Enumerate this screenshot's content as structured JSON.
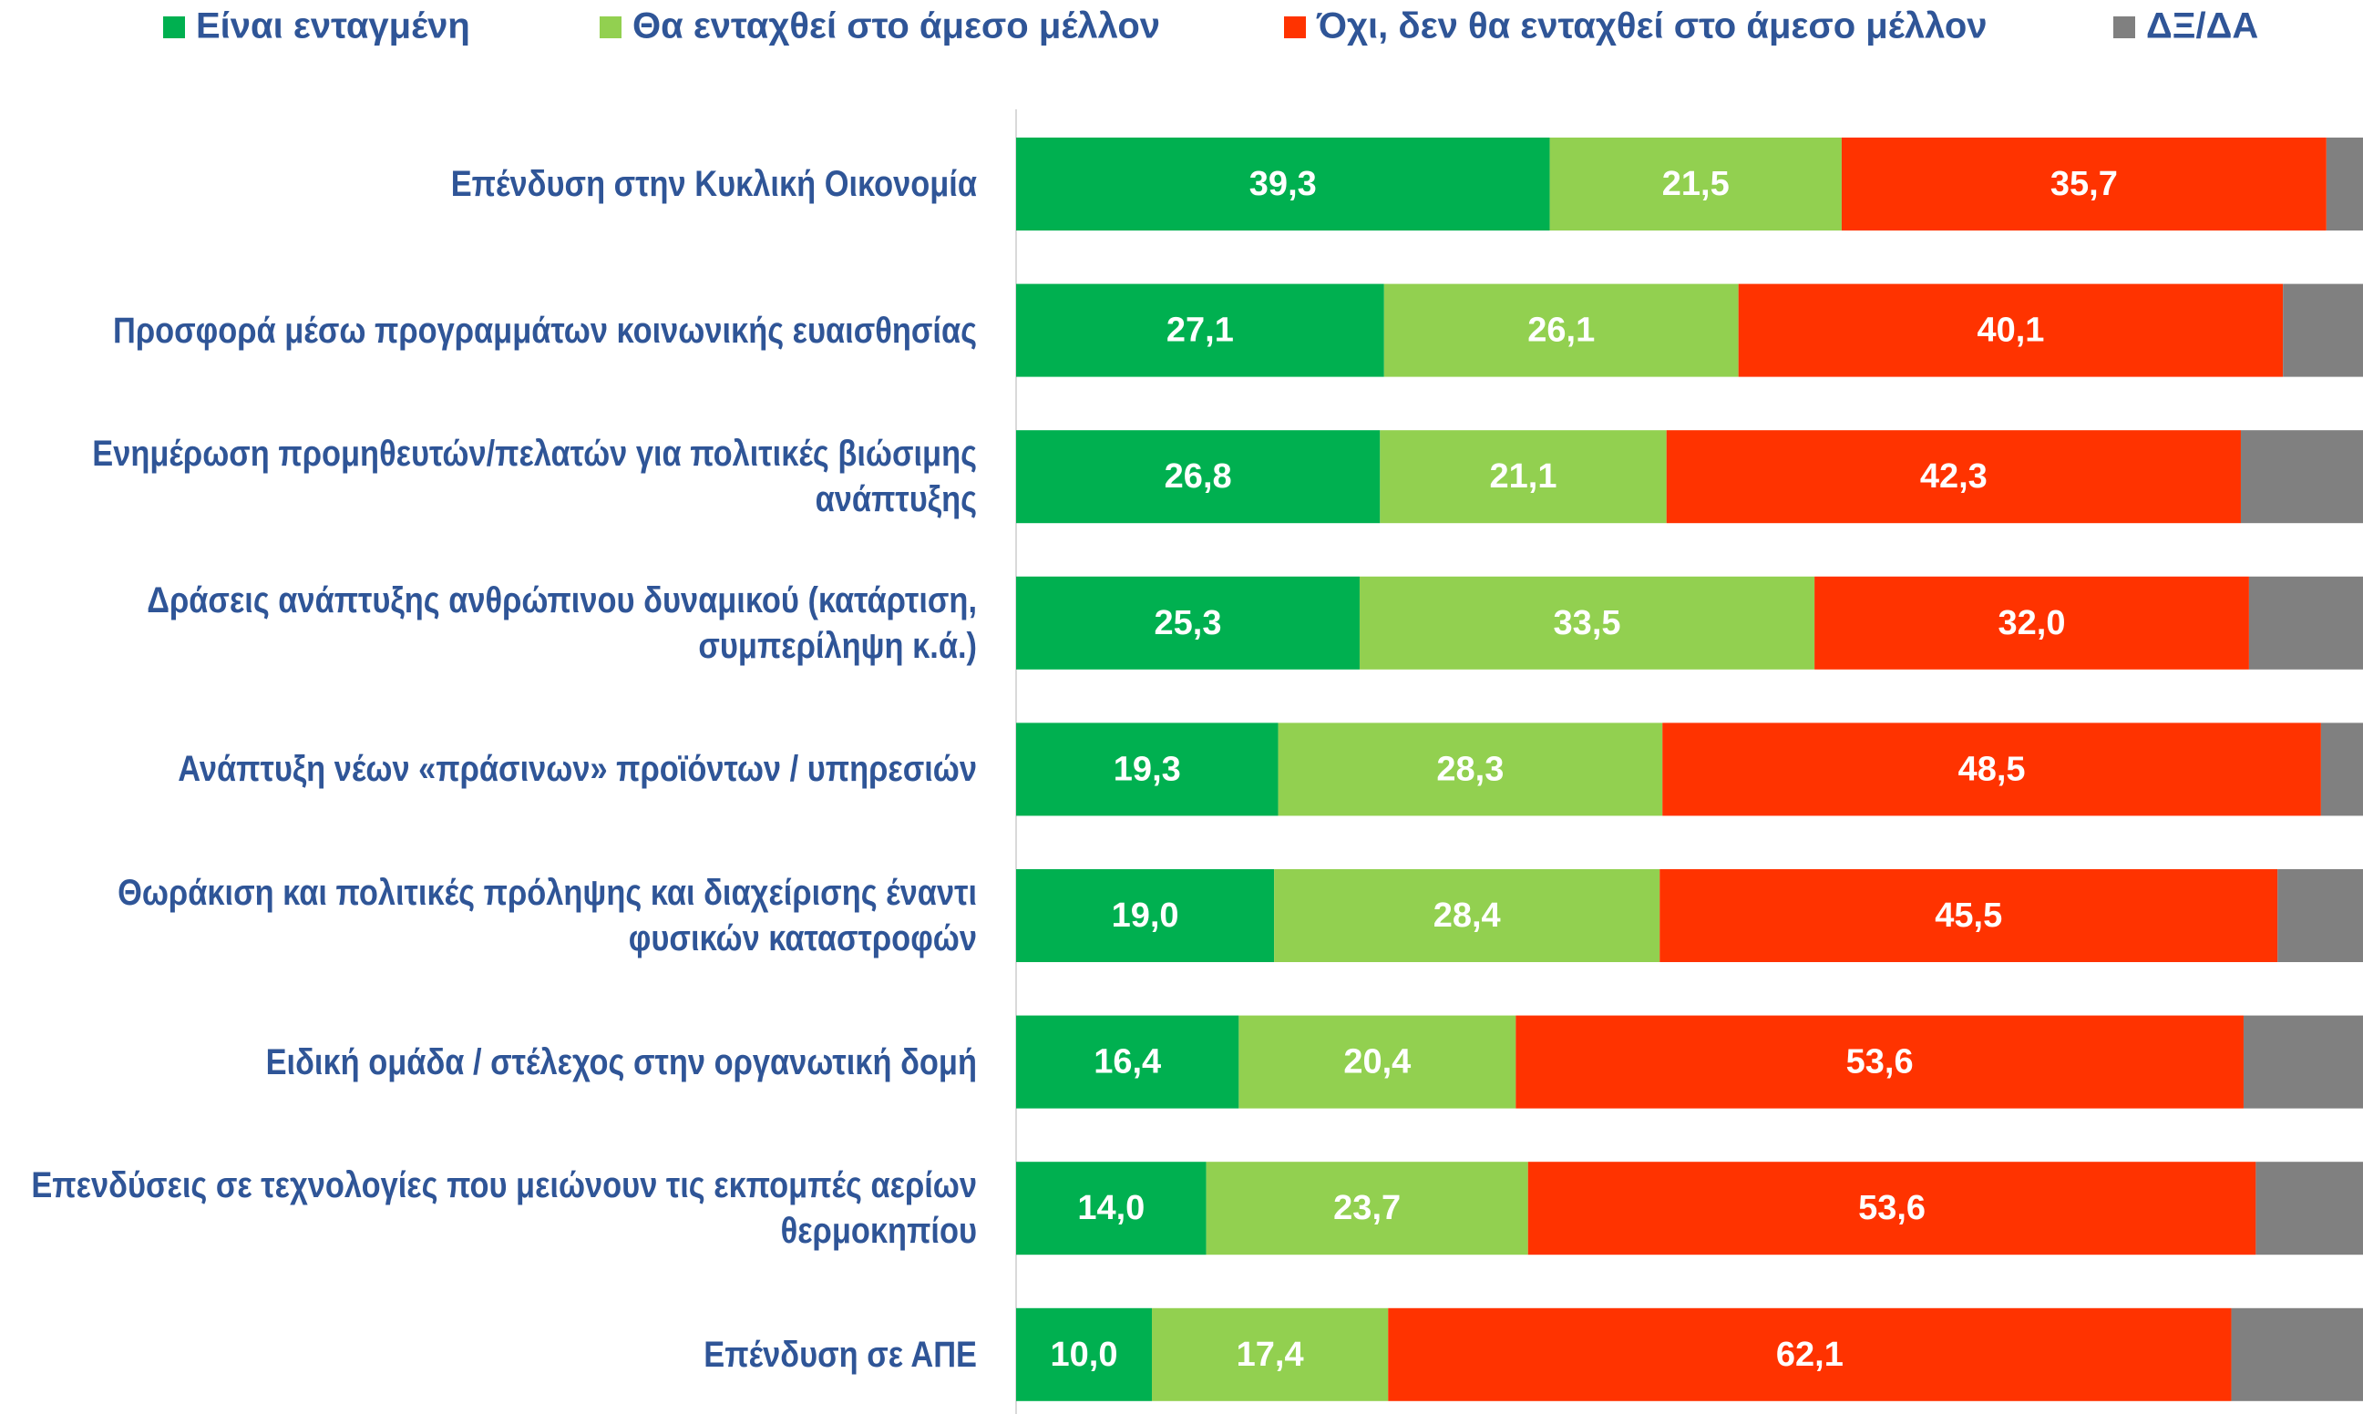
{
  "chart_data": {
    "type": "stacked-bar-horizontal",
    "categories": [
      "Επένδυση στην Κυκλική Οικονομία",
      "Προσφορά μέσω προγραμμάτων κοινωνικής ευαισθησίας",
      "Ενημέρωση προμηθευτών/πελατών για πολιτικές βιώσιμης ανάπτυξης",
      "Δράσεις ανάπτυξης ανθρώπινου δυναμικού (κατάρτιση, συμπερίληψη κ.ά.)",
      "Ανάπτυξη νέων «πράσινων» προϊόντων / υπηρεσιών",
      "Θωράκιση και πολιτικές πρόληψης και διαχείρισης έναντι φυσικών καταστροφών",
      "Ειδική ομάδα / στέλεχος στην οργανωτική δομή",
      "Επενδύσεις σε τεχνολογίες που μειώνουν τις εκπομπές αερίων θερμοκηπίου",
      "Επένδυση σε ΑΠΕ"
    ],
    "series": [
      {
        "name": "Είναι ενταγμένη",
        "color": "#00b050",
        "values": [
          39.3,
          27.1,
          26.8,
          25.3,
          19.3,
          19.0,
          16.4,
          14.0,
          10.0
        ],
        "value_labels": [
          "39,3",
          "27,1",
          "26,8",
          "25,3",
          "19,3",
          "19,0",
          "16,4",
          "14,0",
          "10,0"
        ]
      },
      {
        "name": "Θα ενταχθεί στο άμεσο μέλλον",
        "color": "#92d050",
        "values": [
          21.5,
          26.1,
          21.1,
          33.5,
          28.3,
          28.4,
          20.4,
          23.7,
          17.4
        ],
        "value_labels": [
          "21,5",
          "26,1",
          "21,1",
          "33,5",
          "28,3",
          "28,4",
          "20,4",
          "23,7",
          "17,4"
        ]
      },
      {
        "name": "Όχι, δεν θα ενταχθεί στο άμεσο μέλλον",
        "color": "#ff3300",
        "values": [
          35.7,
          40.1,
          42.3,
          32.0,
          48.5,
          45.5,
          53.6,
          53.6,
          62.1
        ],
        "value_labels": [
          "35,7",
          "40,1",
          "42,3",
          "32,0",
          "48,5",
          "45,5",
          "53,6",
          "53,6",
          "62,1"
        ]
      },
      {
        "name": "ΔΞ/ΔΑ",
        "color": "#808080",
        "values": [
          3.5,
          6.7,
          9.8,
          9.2,
          3.9,
          7.1,
          9.6,
          8.7,
          10.5
        ]
      }
    ],
    "xlim": [
      0,
      100
    ],
    "legend": "top"
  }
}
